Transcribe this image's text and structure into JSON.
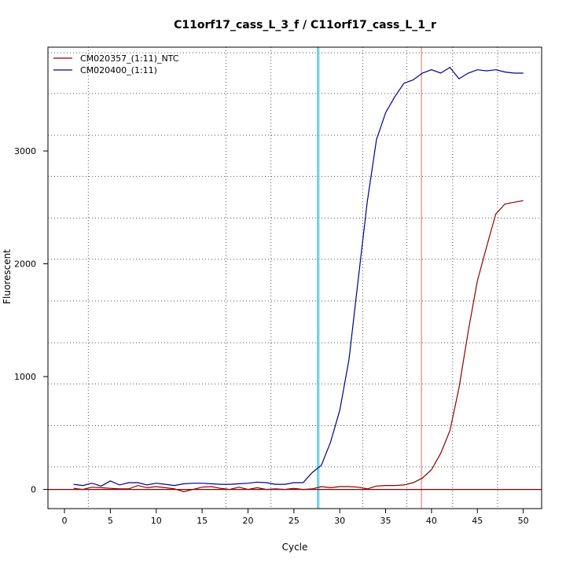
{
  "chart_data": {
    "type": "line",
    "title": "C11orf17_cass_L_3_f / C11orf17_cass_L_1_r",
    "xlabel": "Cycle",
    "ylabel": "Fluorescent",
    "xlim": [
      -1.8,
      52
    ],
    "ylim": [
      -170,
      3920
    ],
    "x_ticks": [
      0,
      5,
      10,
      15,
      20,
      25,
      30,
      35,
      40,
      45,
      50
    ],
    "y_ticks": [
      0,
      1000,
      2000,
      3000
    ],
    "grid": true,
    "grid_x": [
      2.6,
      17.6,
      22.5,
      27.6,
      32.5,
      37.3,
      42.3,
      47.2
    ],
    "grid_y": [
      200,
      565,
      935,
      1300,
      1670,
      2040,
      2405,
      2775,
      3140,
      3510,
      3870
    ],
    "vlines": [
      {
        "x": 27.6,
        "color": "#00bcd4"
      },
      {
        "x": 27.75,
        "color": "#87ceeb"
      },
      {
        "x": 38.9,
        "color": "#e88080"
      }
    ],
    "hline": {
      "y": 0,
      "color": "#8b0000"
    },
    "legend_position": "top-left",
    "series": [
      {
        "name": "CM020357_(1:11)_NTC",
        "color": "#8b0000",
        "x": [
          1,
          2,
          3,
          4,
          5,
          6,
          7,
          8,
          9,
          10,
          11,
          12,
          13,
          14,
          15,
          16,
          17,
          18,
          19,
          20,
          21,
          22,
          23,
          24,
          25,
          26,
          27,
          28,
          29,
          30,
          31,
          32,
          33,
          34,
          35,
          36,
          37,
          38,
          39,
          40,
          41,
          42,
          43,
          44,
          45,
          46,
          47,
          48,
          49,
          50
        ],
        "values": [
          10,
          0,
          20,
          15,
          10,
          5,
          5,
          35,
          15,
          25,
          15,
          5,
          -20,
          0,
          20,
          25,
          10,
          0,
          20,
          0,
          15,
          0,
          5,
          0,
          10,
          0,
          5,
          25,
          15,
          25,
          25,
          20,
          5,
          30,
          35,
          35,
          40,
          60,
          100,
          175,
          320,
          520,
          900,
          1400,
          1850,
          2150,
          2440,
          2530,
          2545,
          2560
        ]
      },
      {
        "name": "CM020400_(1:11)",
        "color": "#00008b",
        "x": [
          1,
          2,
          3,
          4,
          5,
          6,
          7,
          8,
          9,
          10,
          11,
          12,
          13,
          14,
          15,
          16,
          17,
          18,
          19,
          20,
          21,
          22,
          23,
          24,
          25,
          26,
          27,
          28,
          29,
          30,
          31,
          32,
          33,
          34,
          35,
          36,
          37,
          38,
          39,
          40,
          41,
          42,
          43,
          44,
          45,
          46,
          47,
          48,
          49,
          50
        ],
        "values": [
          45,
          35,
          55,
          30,
          75,
          40,
          60,
          60,
          40,
          55,
          45,
          35,
          50,
          55,
          55,
          50,
          45,
          45,
          50,
          55,
          65,
          60,
          45,
          45,
          60,
          60,
          150,
          215,
          420,
          700,
          1150,
          1850,
          2550,
          3100,
          3340,
          3480,
          3600,
          3630,
          3690,
          3720,
          3690,
          3740,
          3640,
          3690,
          3720,
          3710,
          3720,
          3700,
          3690,
          3690
        ]
      }
    ]
  }
}
